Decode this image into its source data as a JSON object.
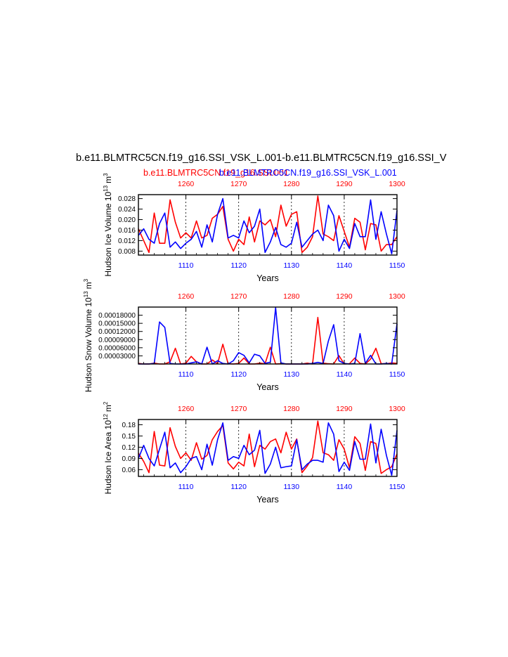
{
  "figure": {
    "title": "b.e11.BLMTRC5CN.f19_g16.SSI_VSK_L.001-b.e11.BLMTRC5CN.f19_g16.SSI_V",
    "legend_red": "b.e11.BLMTRC5CN.f19_g16.SSI.001",
    "legend_blue": "b.e11.BLMTRC5CN.f19_g16.SSI_VSK_L.001",
    "colors": {
      "red": "#ff0000",
      "blue": "#0000ff",
      "axis": "#000000",
      "grid": "#000000"
    }
  },
  "chart_data": [
    {
      "type": "line",
      "xlabel": "Years",
      "ylabel": "Hudson Ice Volume 10",
      "ylabel_exp": "13",
      "ylabel_unit": "m",
      "ylabel_unit_exp": "3",
      "xlim": [
        1101,
        1150
      ],
      "ylim": [
        0.0065,
        0.0295
      ],
      "x_ticks": [
        "1110",
        "1120",
        "1130",
        "1140",
        "1150"
      ],
      "x_top_ticks": [
        "1260",
        "1270",
        "1280",
        "1290",
        "1300"
      ],
      "y_ticks": [
        {
          "value": 0.008,
          "label": "0.008"
        },
        {
          "value": 0.012,
          "label": "0.012"
        },
        {
          "value": 0.016,
          "label": "0.016"
        },
        {
          "value": 0.02,
          "label": "0.020"
        },
        {
          "value": 0.024,
          "label": "0.024"
        },
        {
          "value": 0.028,
          "label": "0.028"
        }
      ],
      "grid_x": [
        "1110",
        "1120",
        "1130",
        "1140"
      ],
      "series": [
        {
          "color": "red",
          "x": [
            1101,
            1102,
            1103,
            1104,
            1105,
            1106,
            1107,
            1108,
            1109,
            1110,
            1111,
            1112,
            1113,
            1114,
            1115,
            1116,
            1117,
            1118,
            1119,
            1120,
            1121,
            1122,
            1123,
            1124,
            1125,
            1126,
            1127,
            1128,
            1129,
            1130,
            1131,
            1132,
            1133,
            1134,
            1135,
            1136,
            1137,
            1138,
            1139,
            1140,
            1141,
            1142,
            1143,
            1144,
            1145,
            1146,
            1147,
            1148,
            1149,
            1150
          ],
          "y": [
            0.0165,
            0.012,
            0.0075,
            0.0225,
            0.011,
            0.011,
            0.0275,
            0.019,
            0.013,
            0.015,
            0.013,
            0.0195,
            0.013,
            0.014,
            0.0205,
            0.022,
            0.025,
            0.0125,
            0.008,
            0.0125,
            0.0105,
            0.021,
            0.0115,
            0.0195,
            0.018,
            0.02,
            0.0135,
            0.0255,
            0.0175,
            0.022,
            0.023,
            0.0075,
            0.0095,
            0.0135,
            0.029,
            0.0145,
            0.0135,
            0.012,
            0.0215,
            0.0155,
            0.0095,
            0.0205,
            0.019,
            0.0085,
            0.0185,
            0.018,
            0.008,
            0.0105,
            0.0105,
            0.0135
          ]
        },
        {
          "color": "blue",
          "x": [
            1101,
            1102,
            1103,
            1104,
            1105,
            1106,
            1107,
            1108,
            1109,
            1110,
            1111,
            1112,
            1113,
            1114,
            1115,
            1116,
            1117,
            1118,
            1119,
            1120,
            1121,
            1122,
            1123,
            1124,
            1125,
            1126,
            1127,
            1128,
            1129,
            1130,
            1131,
            1132,
            1133,
            1134,
            1135,
            1136,
            1137,
            1138,
            1139,
            1140,
            1141,
            1142,
            1143,
            1144,
            1145,
            1146,
            1147,
            1148,
            1149,
            1150
          ],
          "y": [
            0.014,
            0.0165,
            0.0125,
            0.011,
            0.0185,
            0.0225,
            0.0095,
            0.0115,
            0.009,
            0.011,
            0.0125,
            0.0155,
            0.0095,
            0.018,
            0.0115,
            0.022,
            0.028,
            0.013,
            0.014,
            0.013,
            0.0195,
            0.015,
            0.0175,
            0.024,
            0.0075,
            0.0115,
            0.017,
            0.0105,
            0.0095,
            0.011,
            0.019,
            0.0095,
            0.012,
            0.0145,
            0.016,
            0.012,
            0.0255,
            0.0215,
            0.008,
            0.0125,
            0.009,
            0.0185,
            0.0135,
            0.0135,
            0.0275,
            0.0125,
            0.023,
            0.0145,
            0.007,
            0.0235
          ]
        }
      ]
    },
    {
      "type": "line",
      "xlabel": "Years",
      "ylabel": "Hudson Snow Volume 10",
      "ylabel_exp": "13",
      "ylabel_unit": "m",
      "ylabel_unit_exp": "3",
      "xlim": [
        1101,
        1150
      ],
      "ylim": [
        0,
        0.00021
      ],
      "x_ticks": [
        "1110",
        "1120",
        "1130",
        "1140",
        "1150"
      ],
      "x_top_ticks": [
        "1260",
        "1270",
        "1280",
        "1290",
        "1300"
      ],
      "y_ticks": [
        {
          "value": 3e-05,
          "label": "0.00003000"
        },
        {
          "value": 6e-05,
          "label": "0.00006000"
        },
        {
          "value": 9e-05,
          "label": "0.00009000"
        },
        {
          "value": 0.00012,
          "label": "0.00012000"
        },
        {
          "value": 0.00015,
          "label": "0.00015000"
        },
        {
          "value": 0.00018,
          "label": "0.00018000"
        }
      ],
      "grid_x": [
        "1110",
        "1120",
        "1130",
        "1140"
      ],
      "series": [
        {
          "color": "red",
          "x": [
            1101,
            1102,
            1103,
            1104,
            1105,
            1106,
            1107,
            1108,
            1109,
            1110,
            1111,
            1112,
            1113,
            1114,
            1115,
            1116,
            1117,
            1118,
            1119,
            1120,
            1121,
            1122,
            1123,
            1124,
            1125,
            1126,
            1127,
            1128,
            1129,
            1130,
            1131,
            1132,
            1133,
            1134,
            1135,
            1136,
            1137,
            1138,
            1139,
            1140,
            1141,
            1142,
            1143,
            1144,
            1145,
            1146,
            1147,
            1148,
            1149,
            1150
          ],
          "y": [
            2e-06,
            0,
            0,
            3e-06,
            0,
            0,
            8e-06,
            5.8e-05,
            0,
            3e-06,
            2.8e-05,
            8e-06,
            0,
            0,
            1.5e-05,
            1e-06,
            7.3e-05,
            1e-06,
            0,
            2e-06,
            2.2e-05,
            0,
            0,
            3e-06,
            1e-06,
            6.2e-05,
            0,
            1e-06,
            0,
            0,
            0,
            0,
            3e-06,
            0,
            0.000172,
            3e-06,
            1e-06,
            0,
            3.1e-05,
            0,
            1e-06,
            2.2e-05,
            2e-06,
            0,
            1.8e-05,
            5.8e-05,
            1e-06,
            1e-06,
            4e-06,
            2e-06
          ]
        },
        {
          "color": "blue",
          "x": [
            1101,
            1102,
            1103,
            1104,
            1105,
            1106,
            1107,
            1108,
            1109,
            1110,
            1111,
            1112,
            1113,
            1114,
            1115,
            1116,
            1117,
            1118,
            1119,
            1120,
            1121,
            1122,
            1123,
            1124,
            1125,
            1126,
            1127,
            1128,
            1129,
            1130,
            1131,
            1132,
            1133,
            1134,
            1135,
            1136,
            1137,
            1138,
            1139,
            1140,
            1141,
            1142,
            1143,
            1144,
            1145,
            1146,
            1147,
            1148,
            1149,
            1150
          ],
          "y": [
            0,
            0,
            0,
            2e-06,
            0.000155,
            0.000135,
            2e-06,
            0,
            0,
            0,
            4e-06,
            8e-06,
            0,
            6.2e-05,
            0,
            1.2e-05,
            2e-06,
            0,
            1.2e-05,
            4.2e-05,
            3.2e-05,
            4e-06,
            3.6e-05,
            3e-05,
            2e-06,
            7e-06,
            0.000208,
            4e-06,
            0,
            0,
            0,
            0,
            0,
            2e-06,
            6e-06,
            2e-06,
            8.5e-05,
            0.000145,
            1.2e-05,
            2e-06,
            0,
            2e-06,
            0.000112,
            2e-06,
            3.2e-05,
            0,
            0,
            2e-06,
            0,
            0.000148
          ]
        }
      ]
    },
    {
      "type": "line",
      "xlabel": "Years",
      "ylabel": "Hudson Ice Area 10",
      "ylabel_exp": "12",
      "ylabel_unit": "m",
      "ylabel_unit_exp": "2",
      "xlim": [
        1101,
        1150
      ],
      "ylim": [
        0.042,
        0.194
      ],
      "x_ticks": [
        "1110",
        "1120",
        "1130",
        "1140",
        "1150"
      ],
      "x_top_ticks": [
        "1260",
        "1270",
        "1280",
        "1290",
        "1300"
      ],
      "y_ticks": [
        {
          "value": 0.06,
          "label": "0.06"
        },
        {
          "value": 0.09,
          "label": "0.09"
        },
        {
          "value": 0.12,
          "label": "0.12"
        },
        {
          "value": 0.15,
          "label": "0.15"
        },
        {
          "value": 0.18,
          "label": "0.18"
        }
      ],
      "grid_x": [
        "1110",
        "1120",
        "1130",
        "1140"
      ],
      "series": [
        {
          "color": "red",
          "x": [
            1101,
            1102,
            1103,
            1104,
            1105,
            1106,
            1107,
            1108,
            1109,
            1110,
            1111,
            1112,
            1113,
            1114,
            1115,
            1116,
            1117,
            1118,
            1119,
            1120,
            1121,
            1122,
            1123,
            1124,
            1125,
            1126,
            1127,
            1128,
            1129,
            1130,
            1131,
            1132,
            1133,
            1134,
            1135,
            1136,
            1137,
            1138,
            1139,
            1140,
            1141,
            1142,
            1143,
            1144,
            1145,
            1146,
            1147,
            1148,
            1149,
            1150
          ],
          "y": [
            0.104,
            0.082,
            0.052,
            0.162,
            0.072,
            0.07,
            0.172,
            0.122,
            0.09,
            0.105,
            0.085,
            0.132,
            0.088,
            0.098,
            0.14,
            0.162,
            0.178,
            0.078,
            0.062,
            0.08,
            0.07,
            0.155,
            0.068,
            0.125,
            0.115,
            0.135,
            0.142,
            0.105,
            0.16,
            0.115,
            0.142,
            0.052,
            0.07,
            0.092,
            0.19,
            0.105,
            0.1,
            0.085,
            0.14,
            0.115,
            0.065,
            0.148,
            0.13,
            0.058,
            0.135,
            0.13,
            0.05,
            0.06,
            0.068,
            0.102
          ]
        },
        {
          "color": "blue",
          "x": [
            1101,
            1102,
            1103,
            1104,
            1105,
            1106,
            1107,
            1108,
            1109,
            1110,
            1111,
            1112,
            1113,
            1114,
            1115,
            1116,
            1117,
            1118,
            1119,
            1120,
            1121,
            1122,
            1123,
            1124,
            1125,
            1126,
            1127,
            1128,
            1129,
            1130,
            1131,
            1132,
            1133,
            1134,
            1135,
            1136,
            1137,
            1138,
            1139,
            1140,
            1141,
            1142,
            1143,
            1144,
            1145,
            1146,
            1147,
            1148,
            1149,
            1150
          ],
          "y": [
            0.09,
            0.125,
            0.09,
            0.07,
            0.115,
            0.16,
            0.065,
            0.078,
            0.052,
            0.068,
            0.09,
            0.095,
            0.06,
            0.128,
            0.072,
            0.14,
            0.185,
            0.085,
            0.095,
            0.09,
            0.125,
            0.1,
            0.112,
            0.165,
            0.05,
            0.075,
            0.12,
            0.065,
            0.068,
            0.07,
            0.14,
            0.06,
            0.075,
            0.085,
            0.085,
            0.08,
            0.185,
            0.155,
            0.055,
            0.08,
            0.058,
            0.135,
            0.088,
            0.088,
            0.182,
            0.078,
            0.168,
            0.098,
            0.045,
            0.165
          ]
        }
      ]
    }
  ]
}
